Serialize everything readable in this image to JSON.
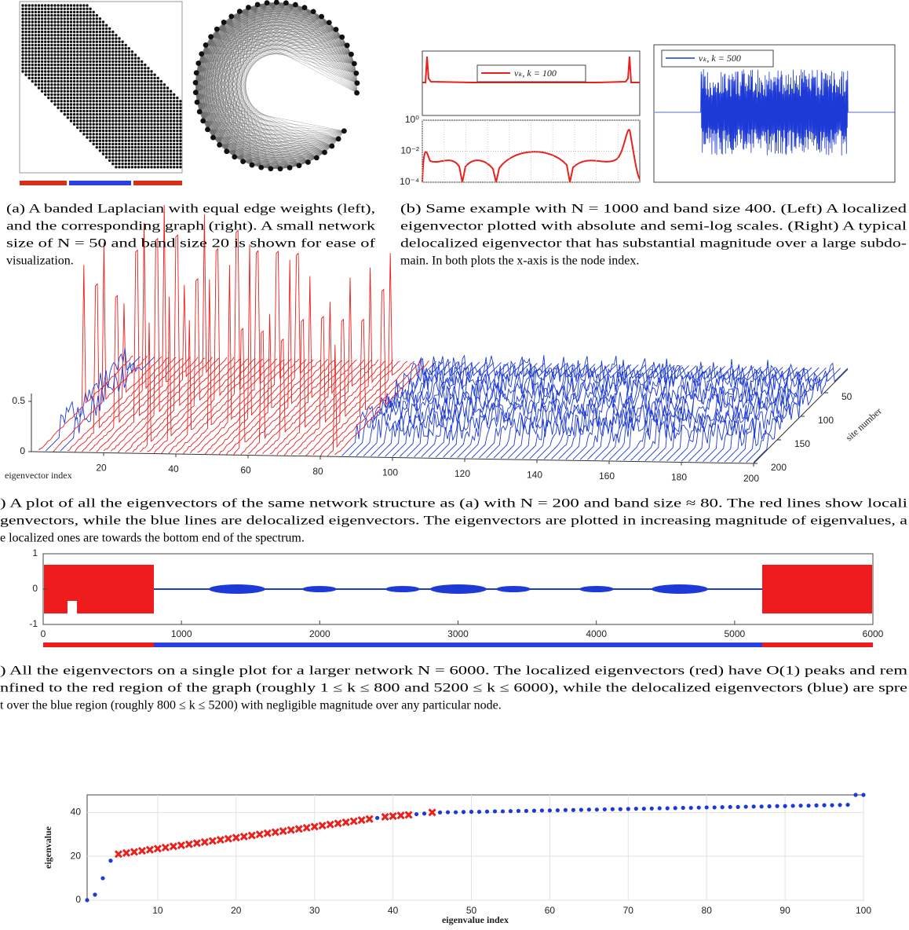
{
  "panel_a": {
    "caption": [
      "(a) A banded Laplacian with equal edge weights (left),",
      "and the corresponding graph (right). A small network",
      "size of N = 50 and band size 20 is shown for ease of",
      "visualization."
    ]
  },
  "panel_b": {
    "caption": [
      "(b) Same example with N = 1000 and band size 400. (Left) A localized",
      "eigenvector plotted with absolute and semi-log scales. (Right) A typical",
      "delocalized eigenvector that has substantial magnitude over a large subdo-",
      "main. In both plots the x-axis is the node index."
    ],
    "legend_left": "vₖ,  k = 100",
    "legend_right": "vₖ,  k = 500",
    "log_plot": {
      "log_scale": true,
      "ylim": [
        0.0001,
        1
      ],
      "yticks": [
        {
          "value": 1,
          "label": "10⁰"
        },
        {
          "value": 0.01,
          "label": "10⁻²"
        },
        {
          "value": 0.0001,
          "label": "10⁻⁴"
        }
      ],
      "grid": true
    }
  },
  "panel_c": {
    "caption": [
      ") A plot of all the eigenvectors of the same network structure as (a) with N = 200 and band size ≈ 80. The red lines show locali",
      "genvectors, while the blue lines are delocalized eigenvectors. The eigenvectors are plotted in increasing magnitude of eigenvalues, a",
      "e localized ones are towards the bottom end of the spectrum."
    ],
    "xlabel": "eigenvector index",
    "ylabel": "site number",
    "xlim": [
      0,
      200
    ],
    "xticks": [
      20,
      40,
      60,
      80,
      100,
      120,
      140,
      160,
      180,
      200
    ],
    "site_lim": [
      0,
      200
    ],
    "site_ticks": [
      50,
      100,
      150,
      200
    ],
    "zlim": [
      0,
      0.5
    ],
    "zticks": [
      0,
      0.5
    ]
  },
  "panel_d": {
    "caption": [
      ") All the eigenvectors on a single plot for a larger network N = 6000. The localized eigenvectors (red) have O(1) peaks and rem",
      "nfined to the red region of the graph (roughly 1 ≤ k ≤ 800 and 5200 ≤ k ≤ 6000), while the delocalized eigenvectors (blue) are spre",
      "t over the blue region (roughly 800 ≤ k ≤ 5200) with negligible magnitude over any particular node."
    ],
    "xlim": [
      0,
      6000
    ],
    "xticks": [
      0,
      1000,
      2000,
      3000,
      4000,
      5000,
      6000
    ],
    "ylim": [
      -1,
      1
    ],
    "yticks": [
      -1,
      0,
      1
    ]
  },
  "chart_data": {
    "type": "scatter",
    "xlabel": "eigenvalue index",
    "ylabel": "eigenvalue",
    "xlim": [
      1,
      100
    ],
    "ylim": [
      0,
      48
    ],
    "xticks": [
      10,
      20,
      30,
      40,
      50,
      60,
      70,
      80,
      90,
      100
    ],
    "yticks": [
      0,
      20,
      40
    ],
    "grid": true,
    "series": [
      {
        "color": "#e8211d",
        "marker": "x",
        "x": [
          5,
          6,
          7,
          8,
          9,
          10,
          11,
          12,
          13,
          14,
          15,
          16,
          17,
          18,
          19,
          20,
          21,
          22,
          23,
          24,
          25,
          26,
          27,
          28,
          29,
          30,
          31,
          32,
          33,
          34,
          35,
          36,
          37,
          39,
          40,
          41,
          42,
          45
        ],
        "values": [
          21,
          21.5,
          22,
          22.5,
          23,
          23.5,
          24,
          24.5,
          25,
          25.5,
          26,
          26.5,
          27,
          27.5,
          28,
          28.5,
          29,
          29.5,
          30,
          30.5,
          31,
          31.5,
          32,
          32.5,
          33,
          33.5,
          34,
          34.5,
          35,
          35.5,
          36,
          36.5,
          37,
          38,
          38.3,
          38.6,
          38.9,
          40
        ]
      },
      {
        "color": "#1d3ad6",
        "marker": "dot",
        "x": [
          1,
          2,
          3,
          4,
          38,
          43,
          44,
          46,
          47,
          48,
          49,
          50,
          51,
          52,
          53,
          54,
          55,
          56,
          57,
          58,
          59,
          60,
          61,
          62,
          63,
          64,
          65,
          66,
          67,
          68,
          69,
          70,
          71,
          72,
          73,
          74,
          75,
          76,
          77,
          78,
          79,
          80,
          81,
          82,
          83,
          84,
          85,
          86,
          87,
          88,
          89,
          90,
          91,
          92,
          93,
          94,
          95,
          96,
          97,
          98,
          99,
          100
        ],
        "values": [
          0,
          2.5,
          10,
          18,
          37.5,
          39.2,
          39.5,
          40.0,
          40.1,
          40.1,
          40.2,
          40.3,
          40.3,
          40.4,
          40.5,
          40.5,
          40.6,
          40.7,
          40.7,
          40.8,
          40.9,
          40.9,
          41.0,
          41.1,
          41.1,
          41.2,
          41.3,
          41.3,
          41.4,
          41.5,
          41.5,
          41.6,
          41.7,
          41.7,
          41.8,
          41.9,
          41.9,
          42.0,
          42.1,
          42.1,
          42.2,
          42.3,
          42.3,
          42.4,
          42.5,
          42.5,
          42.6,
          42.7,
          42.7,
          42.8,
          42.9,
          42.9,
          43.0,
          43.1,
          43.1,
          43.2,
          43.3,
          43.3,
          43.4,
          43.5,
          48,
          48
        ]
      }
    ]
  }
}
